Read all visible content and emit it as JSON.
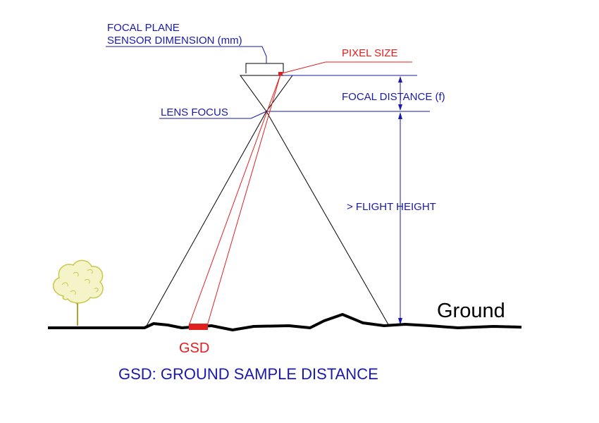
{
  "labels": {
    "focal_plane": "FOCAL PLANE",
    "sensor_dimension": "SENSOR DIMENSION (mm)",
    "pixel_size": "PIXEL SIZE",
    "focal_distance": "FOCAL DISTANCE (f)",
    "lens_focus": "LENS FOCUS",
    "flight_height": "> FLIGHT HEIGHT",
    "ground": "Ground",
    "gsd": "GSD",
    "caption": "GSD: GROUND SAMPLE DISTANCE"
  },
  "colors": {
    "annotation": "#1a1aa6",
    "highlight": "#e02020",
    "line": "#000000",
    "tree": "#c8c84a"
  }
}
